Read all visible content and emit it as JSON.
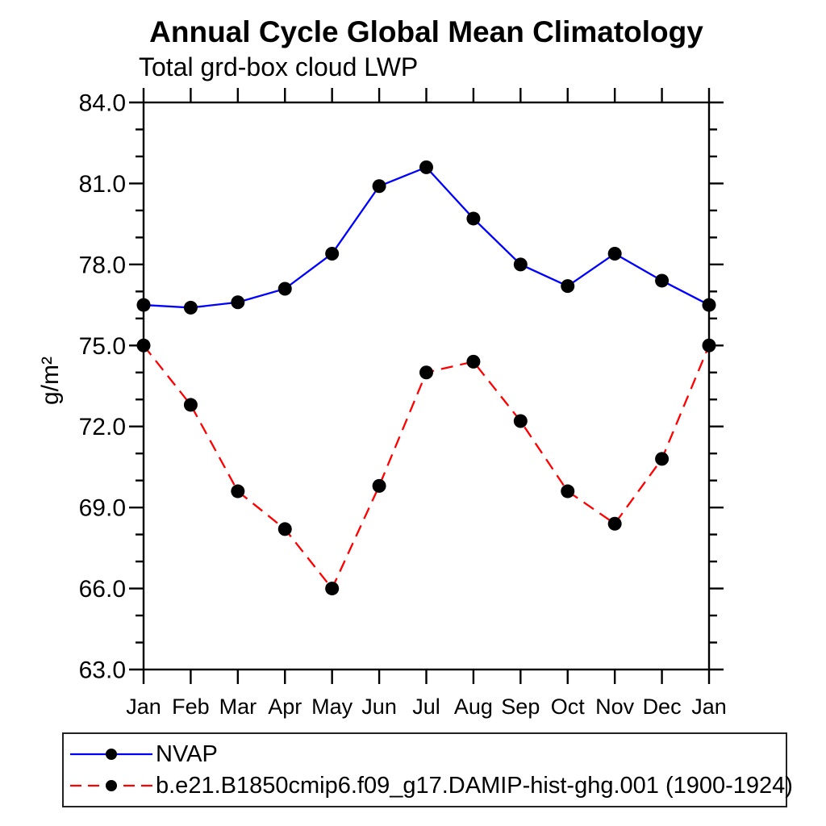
{
  "chart_data": {
    "type": "line",
    "title": "Annual Cycle Global Mean Climatology",
    "subtitle": "Total grd-box cloud LWP",
    "ylabel": "g/m²",
    "xlabel": "",
    "categories": [
      "Jan",
      "Feb",
      "Mar",
      "Apr",
      "May",
      "Jun",
      "Jul",
      "Aug",
      "Sep",
      "Oct",
      "Nov",
      "Dec",
      "Jan"
    ],
    "ylim": [
      63.0,
      84.0
    ],
    "ytick_major_step": 3.0,
    "ytick_minor_step": 1.0,
    "ytick_labels": [
      "63.0",
      "66.0",
      "69.0",
      "72.0",
      "75.0",
      "78.0",
      "81.0",
      "84.0"
    ],
    "grid": false,
    "legend_position": "bottom-left-boxed",
    "axis_color": "#000000",
    "marker_color": "#000000",
    "series": [
      {
        "name": "NVAP",
        "color": "#0000ff",
        "line_style": "solid",
        "marker": "filled-circle",
        "values": [
          76.5,
          76.4,
          76.6,
          77.1,
          78.4,
          80.9,
          81.6,
          79.7,
          78.0,
          77.2,
          78.4,
          77.4,
          76.5
        ]
      },
      {
        "name": "b.e21.B1850cmip6.f09_g17.DAMIP-hist-ghg.001 (1900-1924)",
        "color": "#ff0000",
        "line_style": "dashed",
        "marker": "filled-circle",
        "values": [
          75.0,
          72.8,
          69.6,
          68.2,
          66.0,
          69.8,
          74.0,
          74.4,
          72.2,
          69.6,
          68.4,
          70.8,
          75.0
        ]
      }
    ]
  }
}
